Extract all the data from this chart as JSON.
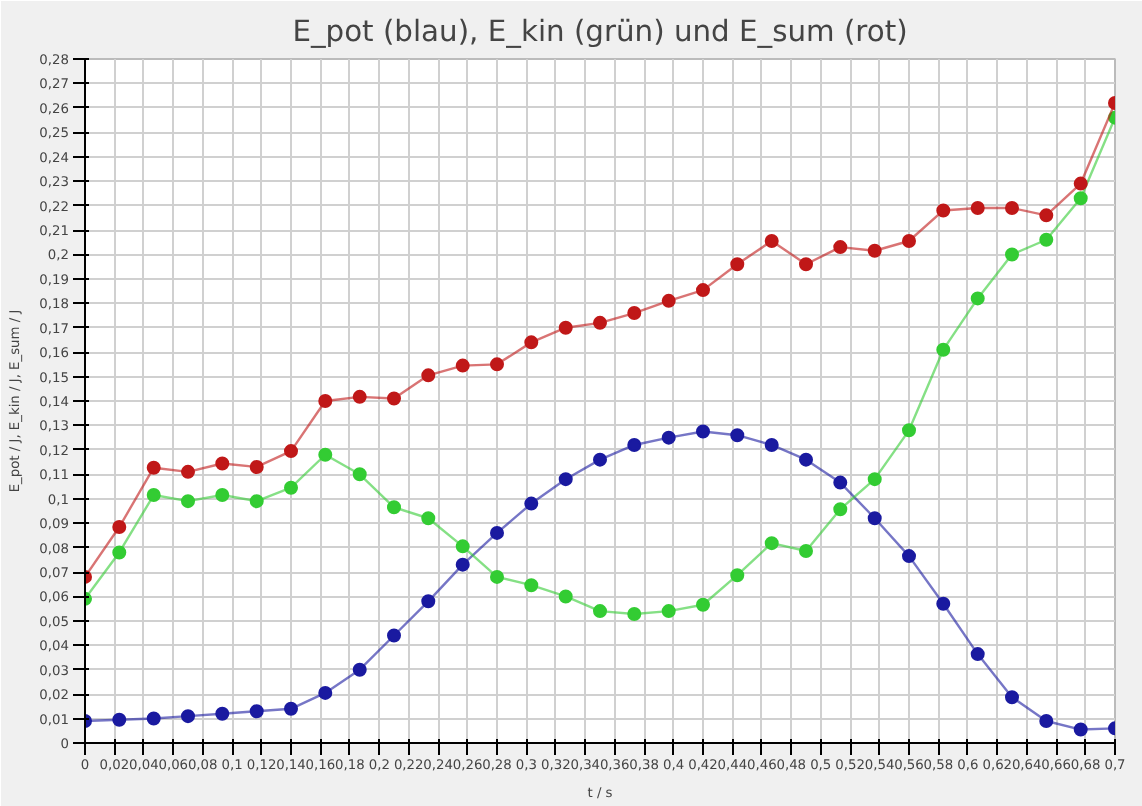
{
  "chart_data": {
    "type": "line",
    "title": "E_pot (blau), E_kin (grün) und E_sum (rot)",
    "xlabel": "t / s",
    "ylabel": "E_pot / J, E_kin / J, E_sum / J",
    "x": [
      0,
      0.0233,
      0.0467,
      0.07,
      0.0933,
      0.1167,
      0.14,
      0.1633,
      0.1867,
      0.21,
      0.2333,
      0.2567,
      0.28,
      0.3033,
      0.3267,
      0.35,
      0.3733,
      0.3967,
      0.42,
      0.4433,
      0.4667,
      0.49,
      0.5133,
      0.5367,
      0.56,
      0.5833,
      0.6067,
      0.63,
      0.6533,
      0.6767,
      0.7
    ],
    "series": [
      {
        "color": "#1a1aa0",
        "values": [
          0.009,
          0.0095,
          0.01,
          0.011,
          0.012,
          0.013,
          0.014,
          0.0205,
          0.03,
          0.044,
          0.058,
          0.073,
          0.086,
          0.098,
          0.108,
          0.116,
          0.122,
          0.125,
          0.1275,
          0.126,
          0.122,
          0.116,
          0.1066,
          0.092,
          0.0765,
          0.057,
          0.0364,
          0.0187,
          0.009,
          0.0055,
          0.006
        ]
      },
      {
        "color": "#33cc33",
        "values": [
          0.059,
          0.078,
          0.1015,
          0.099,
          0.1015,
          0.099,
          0.1045,
          0.118,
          0.11,
          0.0965,
          0.092,
          0.0805,
          0.068,
          0.0646,
          0.06,
          0.054,
          0.0528,
          0.054,
          0.0566,
          0.0687,
          0.0818,
          0.0786,
          0.0957,
          0.108,
          0.128,
          0.161,
          0.182,
          0.2,
          0.206,
          0.223,
          0.256
        ]
      },
      {
        "color": "#c01818",
        "values": [
          0.068,
          0.0884,
          0.1127,
          0.111,
          0.1144,
          0.113,
          0.1195,
          0.14,
          0.1417,
          0.141,
          0.1505,
          0.1545,
          0.155,
          0.164,
          0.17,
          0.172,
          0.176,
          0.181,
          0.1854,
          0.196,
          0.2055,
          0.196,
          0.203,
          0.2015,
          0.2055,
          0.218,
          0.219,
          0.219,
          0.216,
          0.229,
          0.262
        ]
      }
    ],
    "xlim": [
      0,
      0.7
    ],
    "ylim": [
      0,
      0.28
    ],
    "xticks": [
      0,
      {
        "value": 0.02,
        "label": "0,02"
      },
      {
        "value": 0.04,
        "label": "0,04"
      },
      {
        "value": 0.06,
        "label": "0,06"
      },
      {
        "value": 0.08,
        "label": "0,08"
      },
      {
        "value": 0.1,
        "label": "0,1"
      },
      {
        "value": 0.12,
        "label": "0,12"
      },
      {
        "value": 0.14,
        "label": "0,14"
      },
      {
        "value": 0.16,
        "label": "0,16"
      },
      {
        "value": 0.18,
        "label": "0,18"
      },
      {
        "value": 0.2,
        "label": "0,2"
      },
      {
        "value": 0.22,
        "label": "0,22"
      },
      {
        "value": 0.24,
        "label": "0,24"
      },
      {
        "value": 0.26,
        "label": "0,26"
      },
      {
        "value": 0.28,
        "label": "0,28"
      },
      {
        "value": 0.3,
        "label": "0,3"
      },
      {
        "value": 0.32,
        "label": "0,32"
      },
      {
        "value": 0.34,
        "label": "0,34"
      },
      {
        "value": 0.36,
        "label": "0,36"
      },
      {
        "value": 0.38,
        "label": "0,38"
      },
      {
        "value": 0.4,
        "label": "0,4"
      },
      {
        "value": 0.42,
        "label": "0,42"
      },
      {
        "value": 0.44,
        "label": "0,44"
      },
      {
        "value": 0.46,
        "label": "0,46"
      },
      {
        "value": 0.48,
        "label": "0,48"
      },
      {
        "value": 0.5,
        "label": "0,5"
      },
      {
        "value": 0.52,
        "label": "0,52"
      },
      {
        "value": 0.54,
        "label": "0,54"
      },
      {
        "value": 0.56,
        "label": "0,56"
      },
      {
        "value": 0.58,
        "label": "0,58"
      },
      {
        "value": 0.6,
        "label": "0,6"
      },
      {
        "value": 0.62,
        "label": "0,62"
      },
      {
        "value": 0.64,
        "label": "0,64"
      },
      {
        "value": 0.66,
        "label": "0,66"
      },
      {
        "value": 0.68,
        "label": "0,68"
      },
      {
        "value": 0.7,
        "label": "0,7"
      }
    ],
    "yticks": [
      0,
      {
        "value": 0.01,
        "label": "0,01"
      },
      {
        "value": 0.02,
        "label": "0,02"
      },
      {
        "value": 0.03,
        "label": "0,03"
      },
      {
        "value": 0.04,
        "label": "0,04"
      },
      {
        "value": 0.05,
        "label": "0,05"
      },
      {
        "value": 0.06,
        "label": "0,06"
      },
      {
        "value": 0.07,
        "label": "0,07"
      },
      {
        "value": 0.08,
        "label": "0,08"
      },
      {
        "value": 0.09,
        "label": "0,09"
      },
      {
        "value": 0.1,
        "label": "0,1"
      },
      {
        "value": 0.11,
        "label": "0,11"
      },
      {
        "value": 0.12,
        "label": "0,12"
      },
      {
        "value": 0.13,
        "label": "0,13"
      },
      {
        "value": 0.14,
        "label": "0,14"
      },
      {
        "value": 0.15,
        "label": "0,15"
      },
      {
        "value": 0.16,
        "label": "0,16"
      },
      {
        "value": 0.17,
        "label": "0,17"
      },
      {
        "value": 0.18,
        "label": "0,18"
      },
      {
        "value": 0.19,
        "label": "0,19"
      },
      {
        "value": 0.2,
        "label": "0,2"
      },
      {
        "value": 0.21,
        "label": "0,21"
      },
      {
        "value": 0.22,
        "label": "0,22"
      },
      {
        "value": 0.23,
        "label": "0,23"
      },
      {
        "value": 0.24,
        "label": "0,24"
      },
      {
        "value": 0.25,
        "label": "0,25"
      },
      {
        "value": 0.26,
        "label": "0,26"
      },
      {
        "value": 0.27,
        "label": "0,27"
      },
      {
        "value": 0.28,
        "label": "0,28"
      }
    ],
    "grid": true,
    "marker": "circle",
    "line_style": "solid"
  }
}
